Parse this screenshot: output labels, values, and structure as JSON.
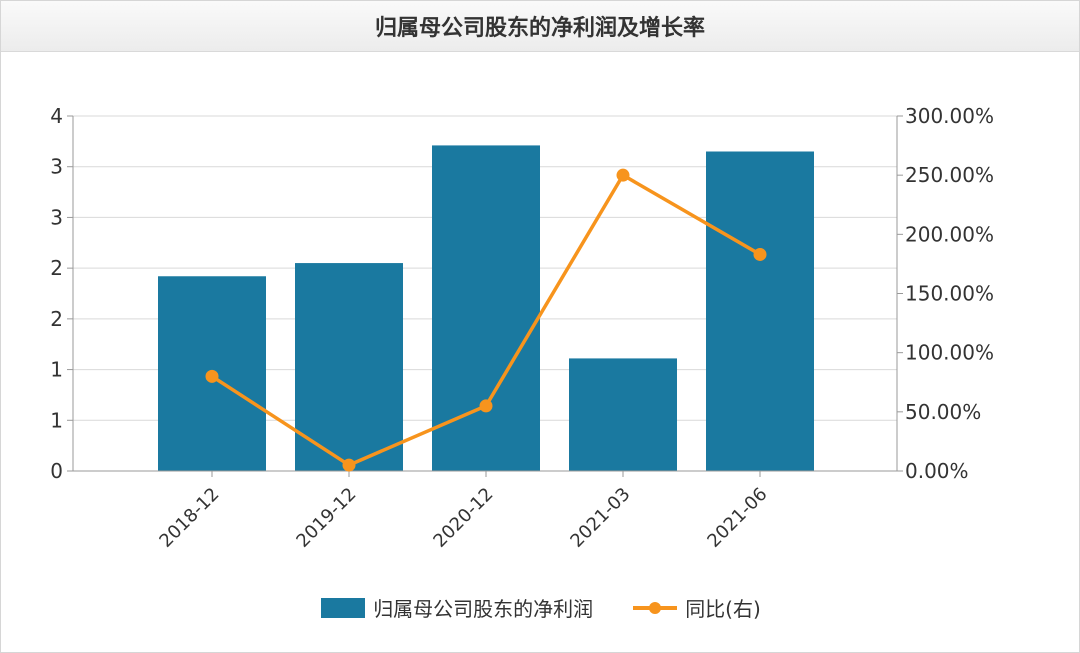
{
  "chart_data": {
    "type": "bar",
    "title": "归属母公司股东的净利润及增长率",
    "categories": [
      "2018-12",
      "2019-12",
      "2020-12",
      "2021-03",
      "2021-06"
    ],
    "series": [
      {
        "name": "归属母公司股东的净利润",
        "type": "bar",
        "axis": "left",
        "values": [
          1.92,
          2.05,
          3.21,
          1.11,
          3.15
        ]
      },
      {
        "name": "同比(右)",
        "type": "line",
        "axis": "right",
        "values": [
          80,
          5,
          55,
          250,
          183
        ]
      }
    ],
    "y_left": {
      "range": [
        0,
        3.5
      ],
      "tick_values": [
        0,
        0.5,
        1,
        1.5,
        2,
        2.5,
        3,
        3.5
      ],
      "tick_labels": [
        "0",
        "1",
        "1",
        "2",
        "2",
        "3",
        "3",
        "4"
      ]
    },
    "y_right": {
      "range": [
        0,
        300
      ],
      "tick_values": [
        0,
        50,
        100,
        150,
        200,
        250,
        300
      ],
      "tick_labels": [
        "0.00%",
        "50.00%",
        "100.00%",
        "150.00%",
        "200.00%",
        "250.00%",
        "300.00%"
      ]
    },
    "grid": true,
    "legend_position": "bottom",
    "colors": {
      "bar": "#1a79a0",
      "line": "#f7941d",
      "grid": "#d9d9d9",
      "axis": "#999999",
      "text": "#333333"
    }
  }
}
